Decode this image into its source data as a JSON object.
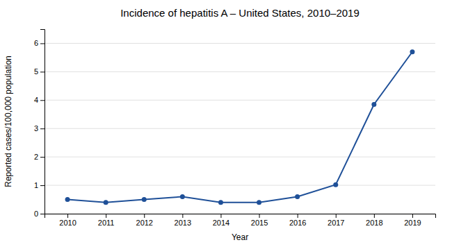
{
  "chart_data": {
    "type": "line",
    "title": "Incidence of hepatitis A – United States, 2010–2019",
    "xlabel": "Year",
    "ylabel": "Reported cases/100,000 population",
    "x": [
      2010,
      2011,
      2012,
      2013,
      2014,
      2015,
      2016,
      2017,
      2018,
      2019
    ],
    "values": [
      0.5,
      0.4,
      0.5,
      0.6,
      0.4,
      0.4,
      0.6,
      1.02,
      3.85,
      5.7
    ],
    "color": "#1F5098",
    "marker": "circle",
    "xlim": [
      2009.4,
      2019.6
    ],
    "xticks": [
      2010,
      2011,
      2012,
      2013,
      2014,
      2015,
      2016,
      2017,
      2018,
      2019
    ],
    "ylim": [
      0,
      6.5
    ],
    "yticks": [
      0,
      1,
      2,
      3,
      4,
      5,
      6
    ],
    "grid": true
  }
}
